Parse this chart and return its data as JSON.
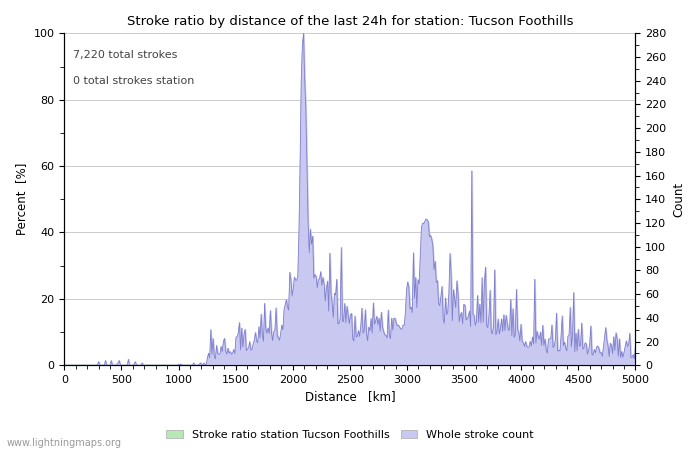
{
  "title": "Stroke ratio by distance of the last 24h for station: Tucson Foothills",
  "xlabel": "Distance   [km]",
  "ylabel_left": "Percent  [%]",
  "ylabel_right": "Count",
  "annotation_line1": "7,220 total strokes",
  "annotation_line2": "0 total strokes station",
  "xlim": [
    0,
    5000
  ],
  "ylim_left": [
    0,
    100
  ],
  "ylim_right": [
    0,
    280
  ],
  "xticks": [
    0,
    500,
    1000,
    1500,
    2000,
    2500,
    3000,
    3500,
    4000,
    4500,
    5000
  ],
  "yticks_left": [
    0,
    20,
    40,
    60,
    80,
    100
  ],
  "yticks_right": [
    0,
    20,
    40,
    60,
    80,
    100,
    120,
    140,
    160,
    180,
    200,
    220,
    240,
    260,
    280
  ],
  "fill_color_green": "#b8e8b8",
  "fill_color_blue": "#c8c8f0",
  "line_color": "#8080cc",
  "grid_color": "#cccccc",
  "background_color": "#ffffff",
  "legend_label_green": "Stroke ratio station Tucson Foothills",
  "legend_label_blue": "Whole stroke count",
  "watermark": "www.lightningmaps.org",
  "figsize": [
    7.0,
    4.5
  ],
  "dpi": 100
}
